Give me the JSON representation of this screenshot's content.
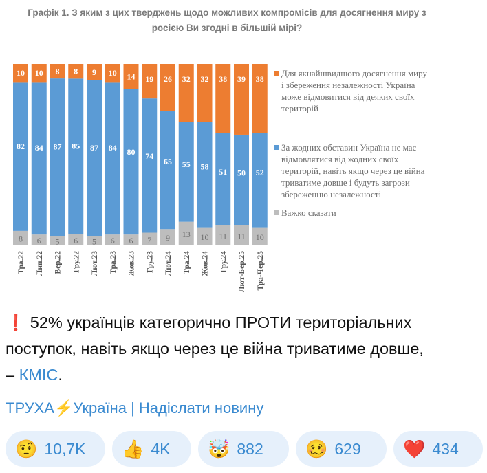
{
  "chart_data": {
    "type": "bar",
    "stacked": true,
    "orientation": "vertical-100-percent",
    "title": "Графік 1. З яким з цих тверджень щодо можливих компромісів для досягнення миру з росією Ви згодні в більшій мірі?",
    "categories": [
      "Тра.22",
      "Лип.22",
      "Вер.22",
      "Гру.22",
      "Лют.23",
      "Тра.23",
      "Жов.23",
      "Гру.23",
      "Лют.24",
      "Тра.24",
      "Жов.24",
      "Гру.24",
      "Лют-Бер.25",
      "Тра-Чер.25"
    ],
    "series": [
      {
        "name": "Важко сказати",
        "color": "#bdbdbd",
        "values": [
          8,
          6,
          5,
          6,
          5,
          6,
          6,
          7,
          9,
          13,
          10,
          11,
          11,
          10
        ]
      },
      {
        "name": "За жодних обставин Україна не має відмовлятися від жодних своїх територій, навіть якщо через це війна триватиме довше і будуть загрози збереженню незалежності",
        "color": "#5b9bd5",
        "values": [
          82,
          84,
          87,
          85,
          87,
          84,
          80,
          74,
          65,
          55,
          58,
          51,
          50,
          52
        ]
      },
      {
        "name": "Для якнайшвидшого досягнення миру і збереження незалежності Україна може відмовитися від деяких своїх територій",
        "color": "#ed7d31",
        "values": [
          10,
          10,
          8,
          8,
          9,
          10,
          14,
          19,
          26,
          32,
          32,
          38,
          39,
          38
        ]
      }
    ],
    "legend_order": [
      2,
      1,
      0
    ],
    "legend_position": "right",
    "grid": false
  },
  "message": {
    "icon": "exclamation-icon",
    "icon_glyph": "❗",
    "text": "52% українців категорично ПРОТИ територіальних поступок, навіть якщо через це війна триватиме довше, –",
    "link": "КМІС",
    "end": "."
  },
  "signature": {
    "channel": "ТРУХА",
    "bolt": "⚡",
    "country": "Україна",
    "sep": "|",
    "send": "Надіслати новину"
  },
  "reactions": [
    {
      "icon": "raised-eyebrow-face-icon",
      "glyph": "🤨",
      "count": "10,7K"
    },
    {
      "icon": "thumbs-up-icon",
      "glyph": "👍",
      "count": "4K"
    },
    {
      "icon": "exploding-head-icon",
      "glyph": "🤯",
      "count": "882"
    },
    {
      "icon": "woozy-face-icon",
      "glyph": "🥴",
      "count": "629"
    },
    {
      "icon": "red-heart-icon",
      "glyph": "❤️",
      "count": "434"
    }
  ]
}
